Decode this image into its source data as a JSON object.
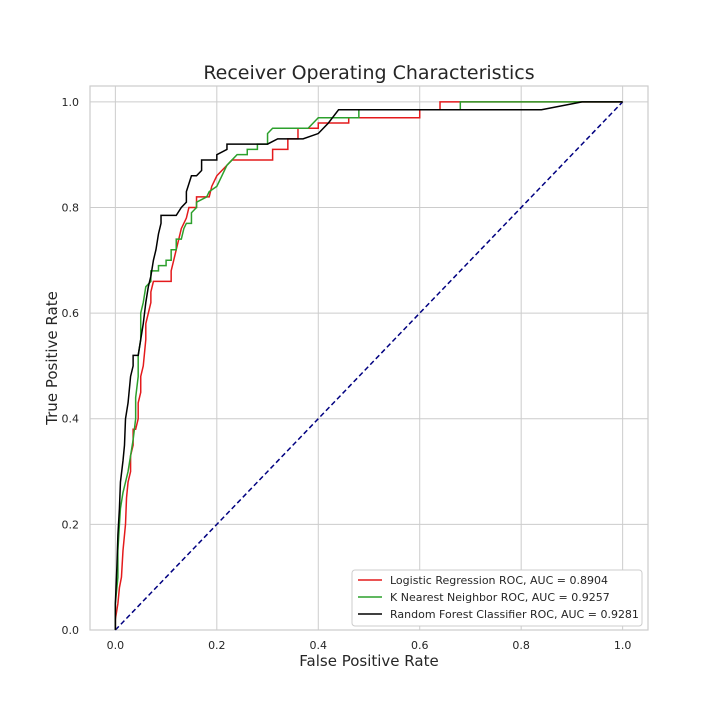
{
  "chart_data": {
    "type": "line",
    "title": "Receiver Operating Characteristics",
    "xlabel": "False Positive Rate",
    "ylabel": "True Positive Rate",
    "xlim": [
      -0.05,
      1.05
    ],
    "ylim": [
      0.0,
      1.03
    ],
    "xticks": [
      0.0,
      0.2,
      0.4,
      0.6,
      0.8,
      1.0
    ],
    "yticks": [
      0.0,
      0.2,
      0.4,
      0.6,
      0.8,
      1.0
    ],
    "xtick_labels": [
      "0.0",
      "0.2",
      "0.4",
      "0.6",
      "0.8",
      "1.0"
    ],
    "ytick_labels": [
      "0.0",
      "0.2",
      "0.4",
      "0.6",
      "0.8",
      "1.0"
    ],
    "grid": true,
    "legend_position": "lower-right",
    "series": [
      {
        "name": "Logistic Regression ROC, AUC = 0.8904",
        "color": "#e41a1c",
        "points": [
          [
            0,
            0
          ],
          [
            0,
            0.02
          ],
          [
            0.005,
            0.05
          ],
          [
            0.008,
            0.08
          ],
          [
            0.012,
            0.1
          ],
          [
            0.015,
            0.15
          ],
          [
            0.02,
            0.2
          ],
          [
            0.022,
            0.25
          ],
          [
            0.025,
            0.28
          ],
          [
            0.03,
            0.3
          ],
          [
            0.03,
            0.33
          ],
          [
            0.035,
            0.35
          ],
          [
            0.035,
            0.38
          ],
          [
            0.04,
            0.38
          ],
          [
            0.045,
            0.4
          ],
          [
            0.045,
            0.43
          ],
          [
            0.05,
            0.45
          ],
          [
            0.05,
            0.48
          ],
          [
            0.055,
            0.5
          ],
          [
            0.058,
            0.53
          ],
          [
            0.06,
            0.55
          ],
          [
            0.06,
            0.58
          ],
          [
            0.065,
            0.6
          ],
          [
            0.07,
            0.62
          ],
          [
            0.07,
            0.64
          ],
          [
            0.075,
            0.66
          ],
          [
            0.11,
            0.66
          ],
          [
            0.11,
            0.68
          ],
          [
            0.115,
            0.7
          ],
          [
            0.12,
            0.72
          ],
          [
            0.125,
            0.74
          ],
          [
            0.13,
            0.76
          ],
          [
            0.14,
            0.78
          ],
          [
            0.145,
            0.8
          ],
          [
            0.16,
            0.8
          ],
          [
            0.16,
            0.82
          ],
          [
            0.185,
            0.82
          ],
          [
            0.19,
            0.84
          ],
          [
            0.2,
            0.86
          ],
          [
            0.21,
            0.87
          ],
          [
            0.22,
            0.88
          ],
          [
            0.23,
            0.89
          ],
          [
            0.31,
            0.89
          ],
          [
            0.31,
            0.91
          ],
          [
            0.34,
            0.91
          ],
          [
            0.34,
            0.93
          ],
          [
            0.36,
            0.93
          ],
          [
            0.36,
            0.95
          ],
          [
            0.4,
            0.95
          ],
          [
            0.4,
            0.96
          ],
          [
            0.46,
            0.96
          ],
          [
            0.46,
            0.97
          ],
          [
            0.6,
            0.97
          ],
          [
            0.6,
            0.985
          ],
          [
            0.64,
            0.985
          ],
          [
            0.64,
            1.0
          ],
          [
            1.0,
            1.0
          ]
        ]
      },
      {
        "name": "K Nearest Neighbor ROC, AUC = 0.9257",
        "color": "#2ca02c",
        "points": [
          [
            0,
            0
          ],
          [
            0,
            0.05
          ],
          [
            0.005,
            0.1
          ],
          [
            0.005,
            0.15
          ],
          [
            0.008,
            0.2
          ],
          [
            0.01,
            0.23
          ],
          [
            0.015,
            0.26
          ],
          [
            0.02,
            0.28
          ],
          [
            0.025,
            0.3
          ],
          [
            0.03,
            0.33
          ],
          [
            0.035,
            0.36
          ],
          [
            0.04,
            0.4
          ],
          [
            0.04,
            0.44
          ],
          [
            0.045,
            0.48
          ],
          [
            0.045,
            0.52
          ],
          [
            0.05,
            0.55
          ],
          [
            0.05,
            0.6
          ],
          [
            0.055,
            0.62
          ],
          [
            0.06,
            0.65
          ],
          [
            0.07,
            0.66
          ],
          [
            0.07,
            0.68
          ],
          [
            0.085,
            0.68
          ],
          [
            0.085,
            0.69
          ],
          [
            0.1,
            0.69
          ],
          [
            0.1,
            0.7
          ],
          [
            0.11,
            0.7
          ],
          [
            0.11,
            0.72
          ],
          [
            0.12,
            0.72
          ],
          [
            0.12,
            0.74
          ],
          [
            0.13,
            0.74
          ],
          [
            0.135,
            0.76
          ],
          [
            0.14,
            0.77
          ],
          [
            0.15,
            0.77
          ],
          [
            0.15,
            0.79
          ],
          [
            0.16,
            0.8
          ],
          [
            0.16,
            0.81
          ],
          [
            0.18,
            0.82
          ],
          [
            0.185,
            0.83
          ],
          [
            0.2,
            0.84
          ],
          [
            0.21,
            0.86
          ],
          [
            0.22,
            0.88
          ],
          [
            0.23,
            0.89
          ],
          [
            0.24,
            0.9
          ],
          [
            0.26,
            0.9
          ],
          [
            0.26,
            0.91
          ],
          [
            0.28,
            0.91
          ],
          [
            0.28,
            0.92
          ],
          [
            0.3,
            0.92
          ],
          [
            0.3,
            0.94
          ],
          [
            0.31,
            0.95
          ],
          [
            0.38,
            0.95
          ],
          [
            0.39,
            0.96
          ],
          [
            0.4,
            0.97
          ],
          [
            0.48,
            0.97
          ],
          [
            0.48,
            0.985
          ],
          [
            0.68,
            0.985
          ],
          [
            0.68,
            1.0
          ],
          [
            1.0,
            1.0
          ]
        ]
      },
      {
        "name": "Random Forest Classifier ROC, AUC = 0.9281",
        "color": "#000000",
        "points": [
          [
            0,
            0
          ],
          [
            0,
            0.05
          ],
          [
            0.003,
            0.12
          ],
          [
            0.005,
            0.18
          ],
          [
            0.008,
            0.23
          ],
          [
            0.01,
            0.28
          ],
          [
            0.015,
            0.32
          ],
          [
            0.018,
            0.35
          ],
          [
            0.02,
            0.4
          ],
          [
            0.025,
            0.43
          ],
          [
            0.03,
            0.48
          ],
          [
            0.035,
            0.5
          ],
          [
            0.035,
            0.52
          ],
          [
            0.045,
            0.52
          ],
          [
            0.05,
            0.55
          ],
          [
            0.055,
            0.58
          ],
          [
            0.06,
            0.62
          ],
          [
            0.065,
            0.65
          ],
          [
            0.07,
            0.67
          ],
          [
            0.075,
            0.7
          ],
          [
            0.08,
            0.72
          ],
          [
            0.085,
            0.75
          ],
          [
            0.09,
            0.77
          ],
          [
            0.09,
            0.785
          ],
          [
            0.12,
            0.785
          ],
          [
            0.13,
            0.8
          ],
          [
            0.14,
            0.81
          ],
          [
            0.14,
            0.83
          ],
          [
            0.15,
            0.86
          ],
          [
            0.16,
            0.86
          ],
          [
            0.17,
            0.87
          ],
          [
            0.17,
            0.89
          ],
          [
            0.2,
            0.89
          ],
          [
            0.2,
            0.9
          ],
          [
            0.22,
            0.91
          ],
          [
            0.22,
            0.92
          ],
          [
            0.3,
            0.92
          ],
          [
            0.32,
            0.93
          ],
          [
            0.37,
            0.93
          ],
          [
            0.4,
            0.94
          ],
          [
            0.42,
            0.96
          ],
          [
            0.44,
            0.985
          ],
          [
            0.84,
            0.985
          ],
          [
            0.92,
            1.0
          ],
          [
            1.0,
            1.0
          ]
        ]
      }
    ],
    "reference_line": {
      "color": "#000080",
      "style": "dashed",
      "points": [
        [
          0,
          0
        ],
        [
          1,
          1
        ]
      ]
    }
  }
}
